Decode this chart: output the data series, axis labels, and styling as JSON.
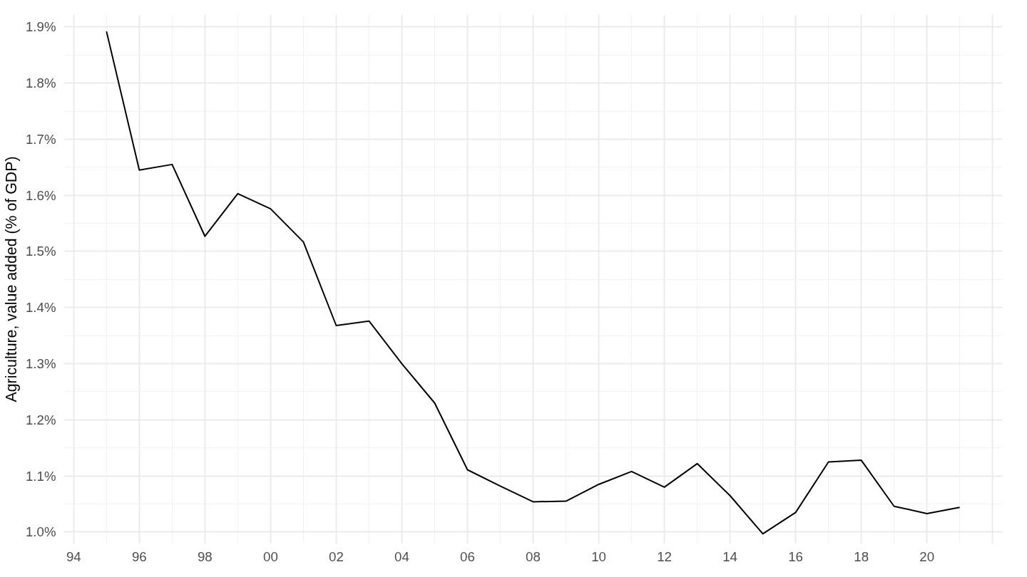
{
  "chart_data": {
    "type": "line",
    "ylabel": "Agriculture, value added (% of GDP)",
    "x": [
      1995,
      1996,
      1997,
      1998,
      1999,
      2000,
      2001,
      2002,
      2003,
      2004,
      2005,
      2006,
      2007,
      2008,
      2009,
      2010,
      2011,
      2012,
      2013,
      2014,
      2015,
      2016,
      2017,
      2018,
      2019,
      2020,
      2021
    ],
    "series": [
      {
        "color": "#000000",
        "values": [
          1.892,
          1.645,
          1.655,
          1.527,
          1.603,
          1.576,
          1.517,
          1.368,
          1.376,
          1.3,
          1.23,
          1.111,
          1.082,
          1.054,
          1.055,
          1.085,
          1.108,
          1.08,
          1.122,
          1.065,
          0.997,
          1.035,
          1.125,
          1.128,
          1.046,
          1.033,
          1.044
        ]
      }
    ],
    "xlim": [
      1993.7,
      2022.3
    ],
    "ylim": [
      0.979,
      1.922
    ],
    "xticks": [
      {
        "value": 1994,
        "label": "94"
      },
      {
        "value": 1996,
        "label": "96"
      },
      {
        "value": 1998,
        "label": "98"
      },
      {
        "value": 2000,
        "label": "00"
      },
      {
        "value": 2002,
        "label": "02"
      },
      {
        "value": 2004,
        "label": "04"
      },
      {
        "value": 2006,
        "label": "06"
      },
      {
        "value": 2008,
        "label": "08"
      },
      {
        "value": 2010,
        "label": "10"
      },
      {
        "value": 2012,
        "label": "12"
      },
      {
        "value": 2014,
        "label": "14"
      },
      {
        "value": 2016,
        "label": "16"
      },
      {
        "value": 2018,
        "label": "18"
      },
      {
        "value": 2020,
        "label": "20"
      },
      {
        "value": 2022,
        "label": null
      }
    ],
    "yticks": [
      {
        "value": 1.0,
        "label": "1.0%"
      },
      {
        "value": 1.1,
        "label": "1.1%"
      },
      {
        "value": 1.2,
        "label": "1.2%"
      },
      {
        "value": 1.3,
        "label": "1.3%"
      },
      {
        "value": 1.4,
        "label": "1.4%"
      },
      {
        "value": 1.5,
        "label": "1.5%"
      },
      {
        "value": 1.6,
        "label": "1.6%"
      },
      {
        "value": 1.7,
        "label": "1.7%"
      },
      {
        "value": 1.8,
        "label": "1.8%"
      },
      {
        "value": 1.9,
        "label": "1.9%"
      }
    ],
    "grid": true,
    "marker": "none",
    "line_style": "solid"
  }
}
